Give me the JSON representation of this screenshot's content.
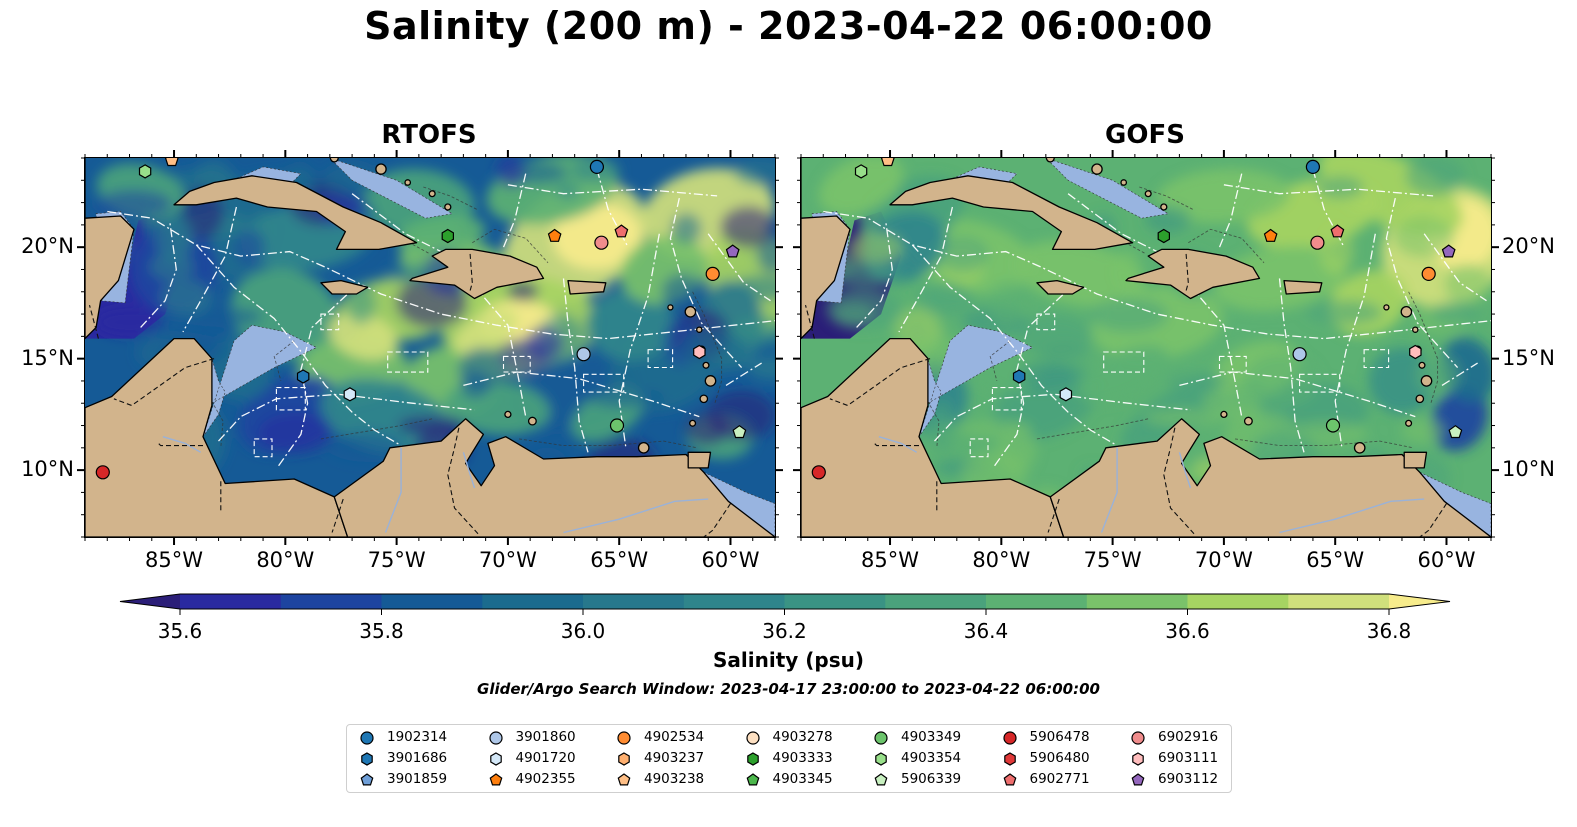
{
  "title": "Salinity (200 m) - 2023-04-22 06:00:00",
  "panels": [
    {
      "title": "RTOFS",
      "style": "rtofs"
    },
    {
      "title": "GOFS",
      "style": "gofs"
    }
  ],
  "map": {
    "lon_range": [
      -89,
      -58
    ],
    "lat_range": [
      7,
      24
    ],
    "lon_ticks": [
      {
        "value": -85,
        "label": "85°W"
      },
      {
        "value": -80,
        "label": "80°W"
      },
      {
        "value": -75,
        "label": "75°W"
      },
      {
        "value": -70,
        "label": "70°W"
      },
      {
        "value": -65,
        "label": "65°W"
      },
      {
        "value": -60,
        "label": "60°W"
      }
    ],
    "lat_ticks": [
      {
        "value": 10,
        "label": "10°N"
      },
      {
        "value": 15,
        "label": "15°N"
      },
      {
        "value": 20,
        "label": "20°N"
      }
    ],
    "land_color": "#d2b48c",
    "shelf_color": "#98b4e0"
  },
  "colorbar": {
    "label": "Salinity (psu)",
    "min": 35.5,
    "max": 36.9,
    "step": 0.1,
    "ticks": [
      "35.6",
      "35.8",
      "36.0",
      "36.2",
      "36.4",
      "36.6",
      "36.8"
    ],
    "colors": [
      "#2b1e78",
      "#2a2aa0",
      "#1d44a0",
      "#155a96",
      "#1b6b8e",
      "#27788c",
      "#2f858b",
      "#3a9384",
      "#4aa27c",
      "#5cb173",
      "#7ac26a",
      "#a6d462",
      "#d0e07c",
      "#f7ec8c"
    ]
  },
  "search_window": "Glider/Argo Search Window: 2023-04-17 23:00:00 to 2023-04-22 06:00:00",
  "legend": [
    {
      "id": "1902314",
      "marker": "circle",
      "color": "#1f77b4"
    },
    {
      "id": "3901686",
      "marker": "hexagon",
      "color": "#1f77b4"
    },
    {
      "id": "3901859",
      "marker": "pentagon",
      "color": "#6f9fd8"
    },
    {
      "id": "3901860",
      "marker": "circle",
      "color": "#aec7e8"
    },
    {
      "id": "4901720",
      "marker": "hexagon",
      "color": "#d4e8f8"
    },
    {
      "id": "4902355",
      "marker": "pentagon",
      "color": "#ff7f0e"
    },
    {
      "id": "4902534",
      "marker": "circle",
      "color": "#ff8c32"
    },
    {
      "id": "4903237",
      "marker": "hexagon",
      "color": "#ffb070"
    },
    {
      "id": "4903238",
      "marker": "pentagon",
      "color": "#ffbf86"
    },
    {
      "id": "4903278",
      "marker": "circle",
      "color": "#fde0c2"
    },
    {
      "id": "4903333",
      "marker": "hexagon",
      "color": "#2ca02c"
    },
    {
      "id": "4903345",
      "marker": "pentagon",
      "color": "#4cb84c"
    },
    {
      "id": "4903349",
      "marker": "circle",
      "color": "#6cc46c"
    },
    {
      "id": "4903354",
      "marker": "hexagon",
      "color": "#98df8a"
    },
    {
      "id": "5906339",
      "marker": "pentagon",
      "color": "#c8f0c0"
    },
    {
      "id": "5906478",
      "marker": "circle",
      "color": "#d62728"
    },
    {
      "id": "5906480",
      "marker": "hexagon",
      "color": "#e03838"
    },
    {
      "id": "6902771",
      "marker": "pentagon",
      "color": "#ee6e6e"
    },
    {
      "id": "6902916",
      "marker": "circle",
      "color": "#f08c8c"
    },
    {
      "id": "6903111",
      "marker": "hexagon",
      "color": "#ffbdbd"
    },
    {
      "id": "6903112",
      "marker": "pentagon",
      "color": "#9467bd"
    }
  ],
  "floats": [
    {
      "id": "1902314",
      "lon": -66,
      "lat": 23.6
    },
    {
      "id": "3901686",
      "lon": -79.2,
      "lat": 14.2
    },
    {
      "id": "3901860",
      "lon": -66.6,
      "lat": 15.2
    },
    {
      "id": "4901720",
      "lon": -77.1,
      "lat": 13.4
    },
    {
      "id": "4902355",
      "lon": -67.9,
      "lat": 20.5
    },
    {
      "id": "4902534",
      "lon": -60.8,
      "lat": 18.8
    },
    {
      "id": "4903238",
      "lon": -85.1,
      "lat": 23.9
    },
    {
      "id": "4903333",
      "lon": -72.7,
      "lat": 20.5
    },
    {
      "id": "4903349",
      "lon": -65.1,
      "lat": 12
    },
    {
      "id": "4903354",
      "lon": -86.3,
      "lat": 23.4
    },
    {
      "id": "5906339",
      "lon": -59.6,
      "lat": 11.7
    },
    {
      "id": "5906478",
      "lon": -88.2,
      "lat": 9.9
    },
    {
      "id": "6902771",
      "lon": -64.9,
      "lat": 20.7
    },
    {
      "id": "6902916",
      "lon": -65.8,
      "lat": 20.2
    },
    {
      "id": "6903111",
      "lon": -61.4,
      "lat": 15.3
    },
    {
      "id": "6903112",
      "lon": -59.9,
      "lat": 19.8
    }
  ]
}
